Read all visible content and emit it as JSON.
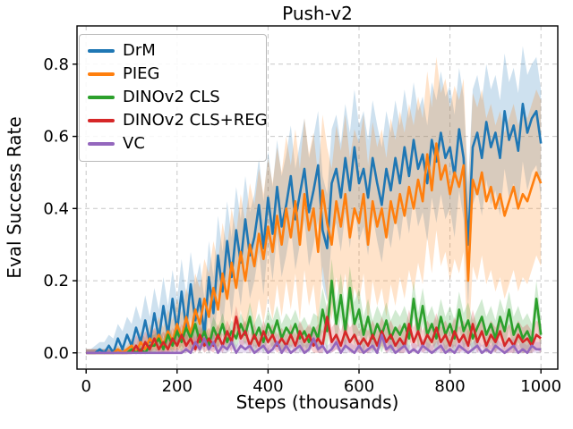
{
  "chart_data": {
    "type": "line",
    "title": "Push-v2",
    "xlabel": "Steps (thousands)",
    "ylabel": "Eval Success Rate",
    "xlim": [
      -20,
      1037
    ],
    "ylim": [
      -0.045,
      0.906
    ],
    "xticks": [
      0,
      200,
      400,
      600,
      800,
      1000
    ],
    "yticks": [
      0.0,
      0.2,
      0.4,
      0.6,
      0.8
    ],
    "grid": true,
    "legend_position": "upper left",
    "x": {
      "start": 0,
      "end": 1000,
      "step": 10
    },
    "series": [
      {
        "id": "drm",
        "name": "DrM",
        "color": "#1f77b4",
        "values": [
          0,
          0,
          0,
          0.01,
          0,
          0.02,
          0,
          0.04,
          0.01,
          0.05,
          0.02,
          0.07,
          0.03,
          0.09,
          0.03,
          0.11,
          0.04,
          0.13,
          0.05,
          0.15,
          0.06,
          0.17,
          0.07,
          0.19,
          0.09,
          0.15,
          0.05,
          0.21,
          0.11,
          0.27,
          0.17,
          0.31,
          0.21,
          0.34,
          0.25,
          0.37,
          0.27,
          0.32,
          0.41,
          0.29,
          0.43,
          0.33,
          0.46,
          0.35,
          0.41,
          0.49,
          0.37,
          0.44,
          0.51,
          0.39,
          0.45,
          0.52,
          0.34,
          0.29,
          0.47,
          0.51,
          0.43,
          0.54,
          0.45,
          0.57,
          0.47,
          0.51,
          0.43,
          0.54,
          0.47,
          0.41,
          0.51,
          0.45,
          0.54,
          0.47,
          0.57,
          0.49,
          0.59,
          0.51,
          0.55,
          0.47,
          0.59,
          0.53,
          0.61,
          0.54,
          0.57,
          0.49,
          0.62,
          0.54,
          0.3,
          0.57,
          0.61,
          0.54,
          0.64,
          0.57,
          0.61,
          0.54,
          0.67,
          0.59,
          0.63,
          0.56,
          0.69,
          0.61,
          0.65,
          0.67,
          0.58
        ],
        "spread_runs": [
          [
            2,
            0.01
          ],
          [
            2,
            0.02
          ],
          [
            2,
            0.03
          ],
          [
            2,
            0.04
          ],
          [
            2,
            0.05
          ],
          [
            3,
            0.06
          ],
          [
            3,
            0.07
          ],
          [
            4,
            0.08
          ],
          [
            4,
            0.09
          ],
          [
            5,
            0.1
          ],
          [
            4,
            0.11
          ],
          [
            5,
            0.12
          ],
          [
            5,
            0.13
          ],
          [
            6,
            0.14
          ],
          [
            9,
            0.15
          ],
          [
            19,
            0.16
          ],
          [
            8,
            0.17
          ],
          [
            13,
            0.16
          ],
          [
            3,
            0.15
          ]
        ]
      },
      {
        "id": "pieg",
        "name": "PIEG",
        "color": "#ff7f0e",
        "values": [
          0,
          0,
          0,
          0,
          0,
          0,
          0,
          0.01,
          0,
          0.01,
          0.02,
          0,
          0.03,
          0.01,
          0.04,
          0.02,
          0.05,
          0.02,
          0.06,
          0.03,
          0.08,
          0.04,
          0.1,
          0.05,
          0.12,
          0.08,
          0.15,
          0.1,
          0.18,
          0.12,
          0.22,
          0.15,
          0.25,
          0.18,
          0.28,
          0.2,
          0.3,
          0.24,
          0.33,
          0.26,
          0.35,
          0.28,
          0.38,
          0.3,
          0.4,
          0.32,
          0.42,
          0.3,
          0.44,
          0.34,
          0.4,
          0.28,
          0.45,
          0.36,
          0.3,
          0.42,
          0.35,
          0.44,
          0.32,
          0.4,
          0.36,
          0.44,
          0.3,
          0.42,
          0.35,
          0.4,
          0.32,
          0.42,
          0.36,
          0.44,
          0.38,
          0.46,
          0.4,
          0.48,
          0.42,
          0.55,
          0.45,
          0.58,
          0.48,
          0.52,
          0.44,
          0.5,
          0.46,
          0.52,
          0.2,
          0.48,
          0.44,
          0.5,
          0.42,
          0.46,
          0.4,
          0.44,
          0.38,
          0.42,
          0.46,
          0.4,
          0.44,
          0.42,
          0.46,
          0.5,
          0.47
        ],
        "spread_runs": [
          [
            10,
            0.01
          ],
          [
            2,
            0.02
          ],
          [
            2,
            0.03
          ],
          [
            2,
            0.04
          ],
          [
            2,
            0.05
          ],
          [
            2,
            0.06
          ],
          [
            2,
            0.07
          ],
          [
            1,
            0.08
          ],
          [
            1,
            0.09
          ],
          [
            2,
            0.1
          ],
          [
            1,
            0.11
          ],
          [
            1,
            0.12
          ],
          [
            2,
            0.13
          ],
          [
            2,
            0.14
          ],
          [
            2,
            0.15
          ],
          [
            2,
            0.16
          ],
          [
            2,
            0.17
          ],
          [
            2,
            0.18
          ],
          [
            3,
            0.19
          ],
          [
            4,
            0.2
          ],
          [
            10,
            0.21
          ],
          [
            10,
            0.22
          ],
          [
            10,
            0.23
          ],
          [
            10,
            0.24
          ],
          [
            14,
            0.23
          ]
        ]
      },
      {
        "id": "dinov2-cls",
        "name": "DINOv2 CLS",
        "color": "#2ca02c",
        "values": [
          0,
          0,
          0,
          0,
          0,
          0,
          0,
          0,
          0,
          0,
          0.01,
          0,
          0.01,
          0,
          0.02,
          0.02,
          0.04,
          0.01,
          0.05,
          0.02,
          0.06,
          0.03,
          0.07,
          0.04,
          0.08,
          0.03,
          0.06,
          0.02,
          0.07,
          0.04,
          0.08,
          0.03,
          0.06,
          0.04,
          0.08,
          0.05,
          0.1,
          0.04,
          0.07,
          0.03,
          0.08,
          0.05,
          0.09,
          0.04,
          0.07,
          0.05,
          0.08,
          0.04,
          0.06,
          0.03,
          0.07,
          0.04,
          0.12,
          0.06,
          0.2,
          0.08,
          0.16,
          0.06,
          0.18,
          0.08,
          0.12,
          0.05,
          0.1,
          0.04,
          0.08,
          0.05,
          0.09,
          0.04,
          0.07,
          0.05,
          0.08,
          0.04,
          0.15,
          0.06,
          0.13,
          0.05,
          0.08,
          0.04,
          0.1,
          0.05,
          0.08,
          0.04,
          0.12,
          0.06,
          0.09,
          0.04,
          0.07,
          0.1,
          0.05,
          0.08,
          0.04,
          0.1,
          0.06,
          0.12,
          0.05,
          0.08,
          0.04,
          0.06,
          0.03,
          0.15,
          0.05
        ],
        "spread_runs": [
          [
            14,
            0.01
          ],
          [
            22,
            0.03
          ],
          [
            15,
            0.04
          ],
          [
            10,
            0.06
          ],
          [
            40,
            0.05
          ]
        ]
      },
      {
        "id": "dinov2-cls-reg",
        "name": "DINOv2 CLS+REG",
        "color": "#d62728",
        "values": [
          0,
          0,
          0,
          0,
          0,
          0,
          0,
          0,
          0,
          0,
          0,
          0.02,
          0,
          0.03,
          0.01,
          0.04,
          0.01,
          0.03,
          0.01,
          0.04,
          0.02,
          0.05,
          0.02,
          0.04,
          0.01,
          0.05,
          0.02,
          0.04,
          0.02,
          0.05,
          0.02,
          0.06,
          0.03,
          0.1,
          0.04,
          0.06,
          0.02,
          0.05,
          0.02,
          0.06,
          0.03,
          0.05,
          0.02,
          0.04,
          0.02,
          0.05,
          0.02,
          0.06,
          0.03,
          0.05,
          0.02,
          0.04,
          0.02,
          0.1,
          0.03,
          0.05,
          0.02,
          0.06,
          0.03,
          0.05,
          0.02,
          0.04,
          0.02,
          0.05,
          0.02,
          0.06,
          0.03,
          0.05,
          0.02,
          0.04,
          0.02,
          0.08,
          0.03,
          0.06,
          0.02,
          0.05,
          0.03,
          0.07,
          0.03,
          0.05,
          0.02,
          0.06,
          0.03,
          0.05,
          0.02,
          0.08,
          0.03,
          0.06,
          0.02,
          0.05,
          0.03,
          0.06,
          0.02,
          0.04,
          0.02,
          0.05,
          0.03,
          0.04,
          0.02,
          0.05,
          0.04
        ],
        "spread_runs": [
          [
            11,
            0.01
          ],
          [
            39,
            0.03
          ],
          [
            51,
            0.04
          ]
        ]
      },
      {
        "id": "vc",
        "name": "VC",
        "color": "#9467bd",
        "values": [
          0,
          0,
          0,
          0,
          0,
          0,
          0,
          0,
          0,
          0,
          0,
          0,
          0,
          0,
          0,
          0,
          0,
          0,
          0,
          0,
          0,
          0,
          0.01,
          0,
          0.03,
          0.01,
          0.04,
          0.01,
          0.03,
          0,
          0.02,
          0.01,
          0.03,
          0,
          0.02,
          0.01,
          0.02,
          0,
          0.01,
          0.02,
          0,
          0.01,
          0.03,
          0,
          0.02,
          0,
          0.01,
          0.02,
          0,
          0.01,
          0.04,
          0.01,
          0.02,
          0,
          0.01,
          0.03,
          0,
          0.02,
          0.01,
          0,
          0.02,
          0,
          0.01,
          0.02,
          0,
          0.05,
          0.01,
          0.02,
          0,
          0.01,
          0.02,
          0,
          0.01,
          0,
          0.02,
          0.01,
          0,
          0.01,
          0.02,
          0,
          0.01,
          0,
          0.02,
          0.01,
          0,
          0.01,
          0.02,
          0,
          0.01,
          0,
          0.02,
          0.01,
          0,
          0.01,
          0.02,
          0,
          0.01,
          0,
          0.02,
          0.01,
          0.01
        ],
        "spread_runs": [
          [
            22,
            0.01
          ],
          [
            79,
            0.02
          ]
        ]
      }
    ]
  }
}
